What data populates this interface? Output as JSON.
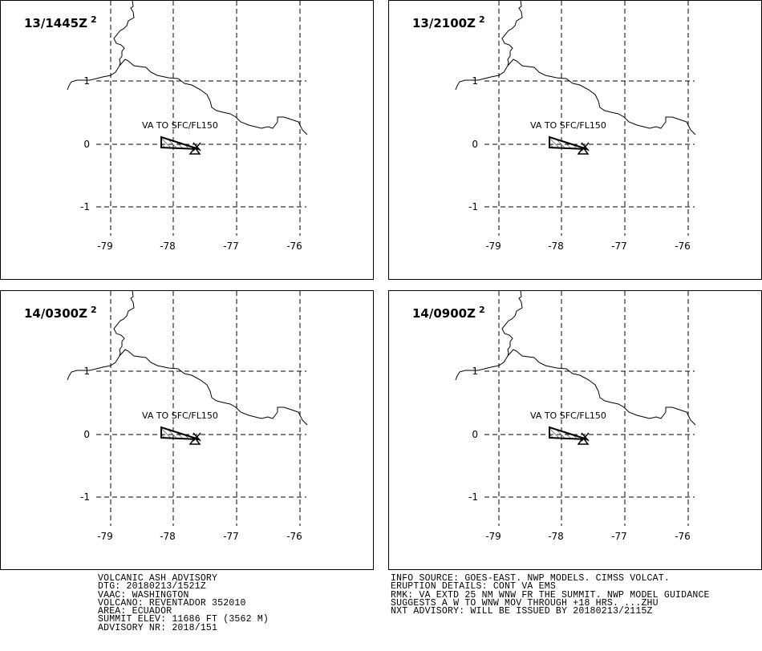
{
  "panels": [
    {
      "time_label": "13/1445Z",
      "superscript": "2",
      "ash_label": "VA TO SFC/FL150"
    },
    {
      "time_label": "13/2100Z",
      "superscript": "2",
      "ash_label": "VA TO SFC/FL150"
    },
    {
      "time_label": "14/0300Z",
      "superscript": "2",
      "ash_label": "VA TO SFC/FL150"
    },
    {
      "time_label": "14/0900Z",
      "superscript": "2",
      "ash_label": "VA TO SFC/FL150"
    }
  ],
  "map": {
    "lon_ticks": [
      "-79",
      "-78",
      "-77",
      "-76"
    ],
    "lat_ticks": [
      "1",
      "0",
      "-1"
    ],
    "volcano_icon": "triangle-volcano-icon",
    "coastline": "border-line"
  },
  "advisory_left": [
    "VOLCANIC ASH ADVISORY",
    "DTG: 20180213/1521Z",
    "VAAC: WASHINGTON",
    "VOLCANO: REVENTADOR 352010",
    "AREA: ECUADOR",
    "SUMMIT ELEV: 11686 FT (3562 M)",
    "ADVISORY NR: 2018/151"
  ],
  "advisory_right": [
    "INFO SOURCE: GOES-EAST. NWP MODELS. CIMSS VOLCAT.",
    "ERUPTION DETAILS: CONT VA EMS",
    "RMK: VA EXTD 25 NM WNW FR THE SUMMIT. NWP MODEL GUIDANCE",
    "SUGGESTS A W TO WNW MOV THROUGH +18 HRS. ...ZHU",
    "NXT ADVISORY: WILL BE ISSUED BY 20180213/2115Z"
  ]
}
